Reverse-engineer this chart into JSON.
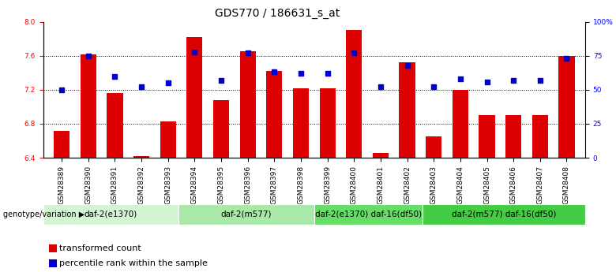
{
  "title": "GDS770 / 186631_s_at",
  "samples": [
    "GSM28389",
    "GSM28390",
    "GSM28391",
    "GSM28392",
    "GSM28393",
    "GSM28394",
    "GSM28395",
    "GSM28396",
    "GSM28397",
    "GSM28398",
    "GSM28399",
    "GSM28400",
    "GSM28401",
    "GSM28402",
    "GSM28403",
    "GSM28404",
    "GSM28405",
    "GSM28406",
    "GSM28407",
    "GSM28408"
  ],
  "transformed_counts": [
    6.72,
    7.62,
    7.16,
    6.42,
    6.83,
    7.82,
    7.08,
    7.65,
    7.42,
    7.22,
    7.22,
    7.9,
    6.46,
    7.52,
    6.65,
    7.2,
    6.9,
    6.9,
    6.9,
    7.6
  ],
  "percentile_ranks": [
    50,
    75,
    60,
    52,
    55,
    78,
    57,
    77,
    63,
    62,
    62,
    77,
    52,
    68,
    52,
    58,
    56,
    57,
    57,
    73
  ],
  "ylim_left": [
    6.4,
    8.0
  ],
  "ylim_right": [
    0,
    100
  ],
  "yticks_left": [
    6.4,
    6.8,
    7.2,
    7.6,
    8.0
  ],
  "yticks_right": [
    0,
    25,
    50,
    75,
    100
  ],
  "ytick_labels_right": [
    "0",
    "25",
    "50",
    "75",
    "100%"
  ],
  "groups": [
    {
      "label": "daf-2(e1370)",
      "start": 0,
      "end": 5,
      "color": "#d4f5d4"
    },
    {
      "label": "daf-2(m577)",
      "start": 5,
      "end": 10,
      "color": "#aae8aa"
    },
    {
      "label": "daf-2(e1370) daf-16(df50)",
      "start": 10,
      "end": 14,
      "color": "#66dd66"
    },
    {
      "label": "daf-2(m577) daf-16(df50)",
      "start": 14,
      "end": 20,
      "color": "#44cc44"
    }
  ],
  "bar_color": "#dd0000",
  "dot_color": "#0000cc",
  "bar_bottom": 6.4,
  "legend_items": [
    {
      "color": "#dd0000",
      "label": "transformed count"
    },
    {
      "color": "#0000cc",
      "label": "percentile rank within the sample"
    }
  ],
  "genotype_label": "genotype/variation",
  "title_fontsize": 10,
  "tick_fontsize": 6.5,
  "group_fontsize": 7.5,
  "legend_fontsize": 8
}
